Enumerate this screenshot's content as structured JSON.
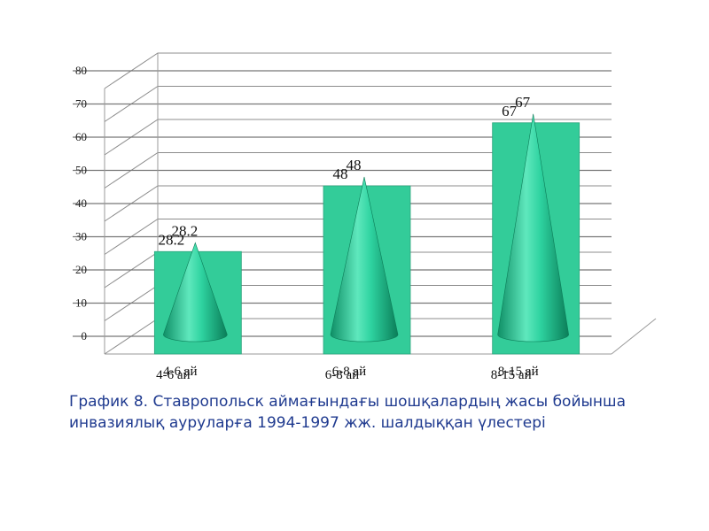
{
  "chart_data": {
    "type": "bar",
    "categories": [
      "4-6 ай",
      "6-8 ай",
      "8-15 ай"
    ],
    "series": [
      {
        "values": [
          28.2,
          48,
          67
        ],
        "style": "bar"
      },
      {
        "values": [
          28.2,
          48,
          67
        ],
        "style": "cone"
      }
    ],
    "data_labels": [
      "28.2",
      "48",
      "67"
    ],
    "ylim": [
      0,
      80
    ],
    "yticks": [
      "0",
      "10",
      "20",
      "30",
      "40",
      "50",
      "60",
      "70",
      "80"
    ],
    "grid": true,
    "title": "",
    "xlabel": "",
    "ylabel": ""
  },
  "colors": {
    "bar": "#33cc99",
    "cone": "#1ebf8c",
    "grid": "#8c8c8c"
  },
  "caption": "График 8. Ставропольск аймағындағы шошқалардың жасы бойынша инвазиялық ауруларға 1994-1997 жж. шалдыққан үлестері"
}
